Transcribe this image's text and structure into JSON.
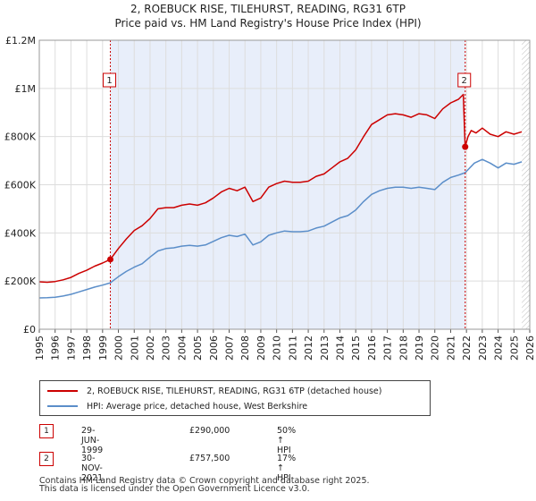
{
  "header": {
    "title_line1": "2, ROEBUCK RISE, TILEHURST, READING, RG31 6TP",
    "title_line2": "Price paid vs. HM Land Registry's House Price Index (HPI)"
  },
  "chart_data": {
    "type": "line",
    "title": "2, ROEBUCK RISE, TILEHURST, READING, RG31 6TP",
    "subtitle": "Price paid vs. HM Land Registry's House Price Index (HPI)",
    "xlabel": "",
    "ylabel": "",
    "xlim": [
      1995.0,
      2026.0
    ],
    "ylim": [
      0,
      1200000
    ],
    "y_ticks": [
      0,
      200000,
      400000,
      600000,
      800000,
      1000000,
      1200000
    ],
    "y_tick_labels": [
      "£0",
      "£200K",
      "£400K",
      "£600K",
      "£800K",
      "£1M",
      "£1.2M"
    ],
    "x_ticks": [
      1995,
      1996,
      1997,
      1998,
      1999,
      2000,
      2001,
      2002,
      2003,
      2004,
      2005,
      2006,
      2007,
      2008,
      2009,
      2010,
      2011,
      2012,
      2013,
      2014,
      2015,
      2016,
      2017,
      2018,
      2019,
      2020,
      2021,
      2022,
      2023,
      2024,
      2025,
      2026
    ],
    "grid": true,
    "shaded_span": [
      1999.49,
      2021.92
    ],
    "hatched_from": 2025.5,
    "sale_markers": [
      {
        "label": "1",
        "x": 1999.49,
        "y": 290000
      },
      {
        "label": "2",
        "x": 2021.92,
        "y": 757500
      }
    ],
    "series": [
      {
        "name": "2, ROEBUCK RISE, TILEHURST, READING, RG31 6TP (detached house)",
        "color": "#cc0000",
        "x": [
          1995.0,
          1995.5,
          1996.0,
          1996.5,
          1997.0,
          1997.5,
          1998.0,
          1998.5,
          1999.0,
          1999.49,
          2000.0,
          2000.5,
          2001.0,
          2001.5,
          2002.0,
          2002.5,
          2003.0,
          2003.5,
          2004.0,
          2004.5,
          2005.0,
          2005.5,
          2006.0,
          2006.5,
          2007.0,
          2007.5,
          2008.0,
          2008.5,
          2009.0,
          2009.5,
          2010.0,
          2010.5,
          2011.0,
          2011.5,
          2012.0,
          2012.5,
          2013.0,
          2013.5,
          2014.0,
          2014.5,
          2015.0,
          2015.5,
          2016.0,
          2016.5,
          2017.0,
          2017.5,
          2018.0,
          2018.5,
          2019.0,
          2019.5,
          2020.0,
          2020.5,
          2021.0,
          2021.5,
          2021.8,
          2021.92,
          2022.1,
          2022.3,
          2022.6,
          2023.0,
          2023.5,
          2024.0,
          2024.5,
          2025.0,
          2025.5
        ],
        "values": [
          197000,
          195000,
          198000,
          205000,
          215000,
          232000,
          245000,
          262000,
          275000,
          290000,
          335000,
          375000,
          410000,
          430000,
          460000,
          500000,
          505000,
          505000,
          515000,
          520000,
          515000,
          525000,
          545000,
          570000,
          585000,
          575000,
          590000,
          530000,
          545000,
          590000,
          605000,
          615000,
          610000,
          610000,
          615000,
          635000,
          645000,
          670000,
          695000,
          710000,
          745000,
          800000,
          850000,
          870000,
          890000,
          895000,
          890000,
          880000,
          895000,
          890000,
          875000,
          915000,
          940000,
          955000,
          975000,
          757500,
          800000,
          825000,
          815000,
          835000,
          810000,
          800000,
          820000,
          810000,
          820000
        ]
      },
      {
        "name": "HPI: Average price, detached house, West Berkshire",
        "color": "#5b8ec9",
        "x": [
          1995.0,
          1995.5,
          1996.0,
          1996.5,
          1997.0,
          1997.5,
          1998.0,
          1998.5,
          1999.0,
          1999.49,
          2000.0,
          2000.5,
          2001.0,
          2001.5,
          2002.0,
          2002.5,
          2003.0,
          2003.5,
          2004.0,
          2004.5,
          2005.0,
          2005.5,
          2006.0,
          2006.5,
          2007.0,
          2007.5,
          2008.0,
          2008.5,
          2009.0,
          2009.5,
          2010.0,
          2010.5,
          2011.0,
          2011.5,
          2012.0,
          2012.5,
          2013.0,
          2013.5,
          2014.0,
          2014.5,
          2015.0,
          2015.5,
          2016.0,
          2016.5,
          2017.0,
          2017.5,
          2018.0,
          2018.5,
          2019.0,
          2019.5,
          2020.0,
          2020.5,
          2021.0,
          2021.5,
          2021.92,
          2022.5,
          2023.0,
          2023.5,
          2024.0,
          2024.5,
          2025.0,
          2025.5
        ],
        "values": [
          130000,
          131000,
          133000,
          138000,
          145000,
          155000,
          165000,
          175000,
          183000,
          193000,
          218000,
          240000,
          258000,
          272000,
          300000,
          325000,
          335000,
          338000,
          345000,
          348000,
          345000,
          350000,
          365000,
          380000,
          390000,
          385000,
          395000,
          350000,
          363000,
          390000,
          400000,
          408000,
          405000,
          405000,
          408000,
          420000,
          428000,
          445000,
          462000,
          472000,
          495000,
          530000,
          560000,
          575000,
          585000,
          590000,
          590000,
          585000,
          590000,
          585000,
          580000,
          610000,
          630000,
          640000,
          650000,
          690000,
          705000,
          690000,
          670000,
          690000,
          685000,
          695000
        ]
      }
    ]
  },
  "legend": {
    "items": [
      {
        "label": "2, ROEBUCK RISE, TILEHURST, READING, RG31 6TP (detached house)",
        "color": "#cc0000"
      },
      {
        "label": "HPI: Average price, detached house, West Berkshire",
        "color": "#5b8ec9"
      }
    ]
  },
  "annotations": [
    {
      "num": "1",
      "date": "29-JUN-1999",
      "price": "£290,000",
      "hpi": "50% ↑ HPI"
    },
    {
      "num": "2",
      "date": "30-NOV-2021",
      "price": "£757,500",
      "hpi": "17% ↑ HPI"
    }
  ],
  "footer": {
    "line1": "Contains HM Land Registry data © Crown copyright and database right 2025.",
    "line2": "This data is licensed under the Open Government Licence v3.0."
  }
}
